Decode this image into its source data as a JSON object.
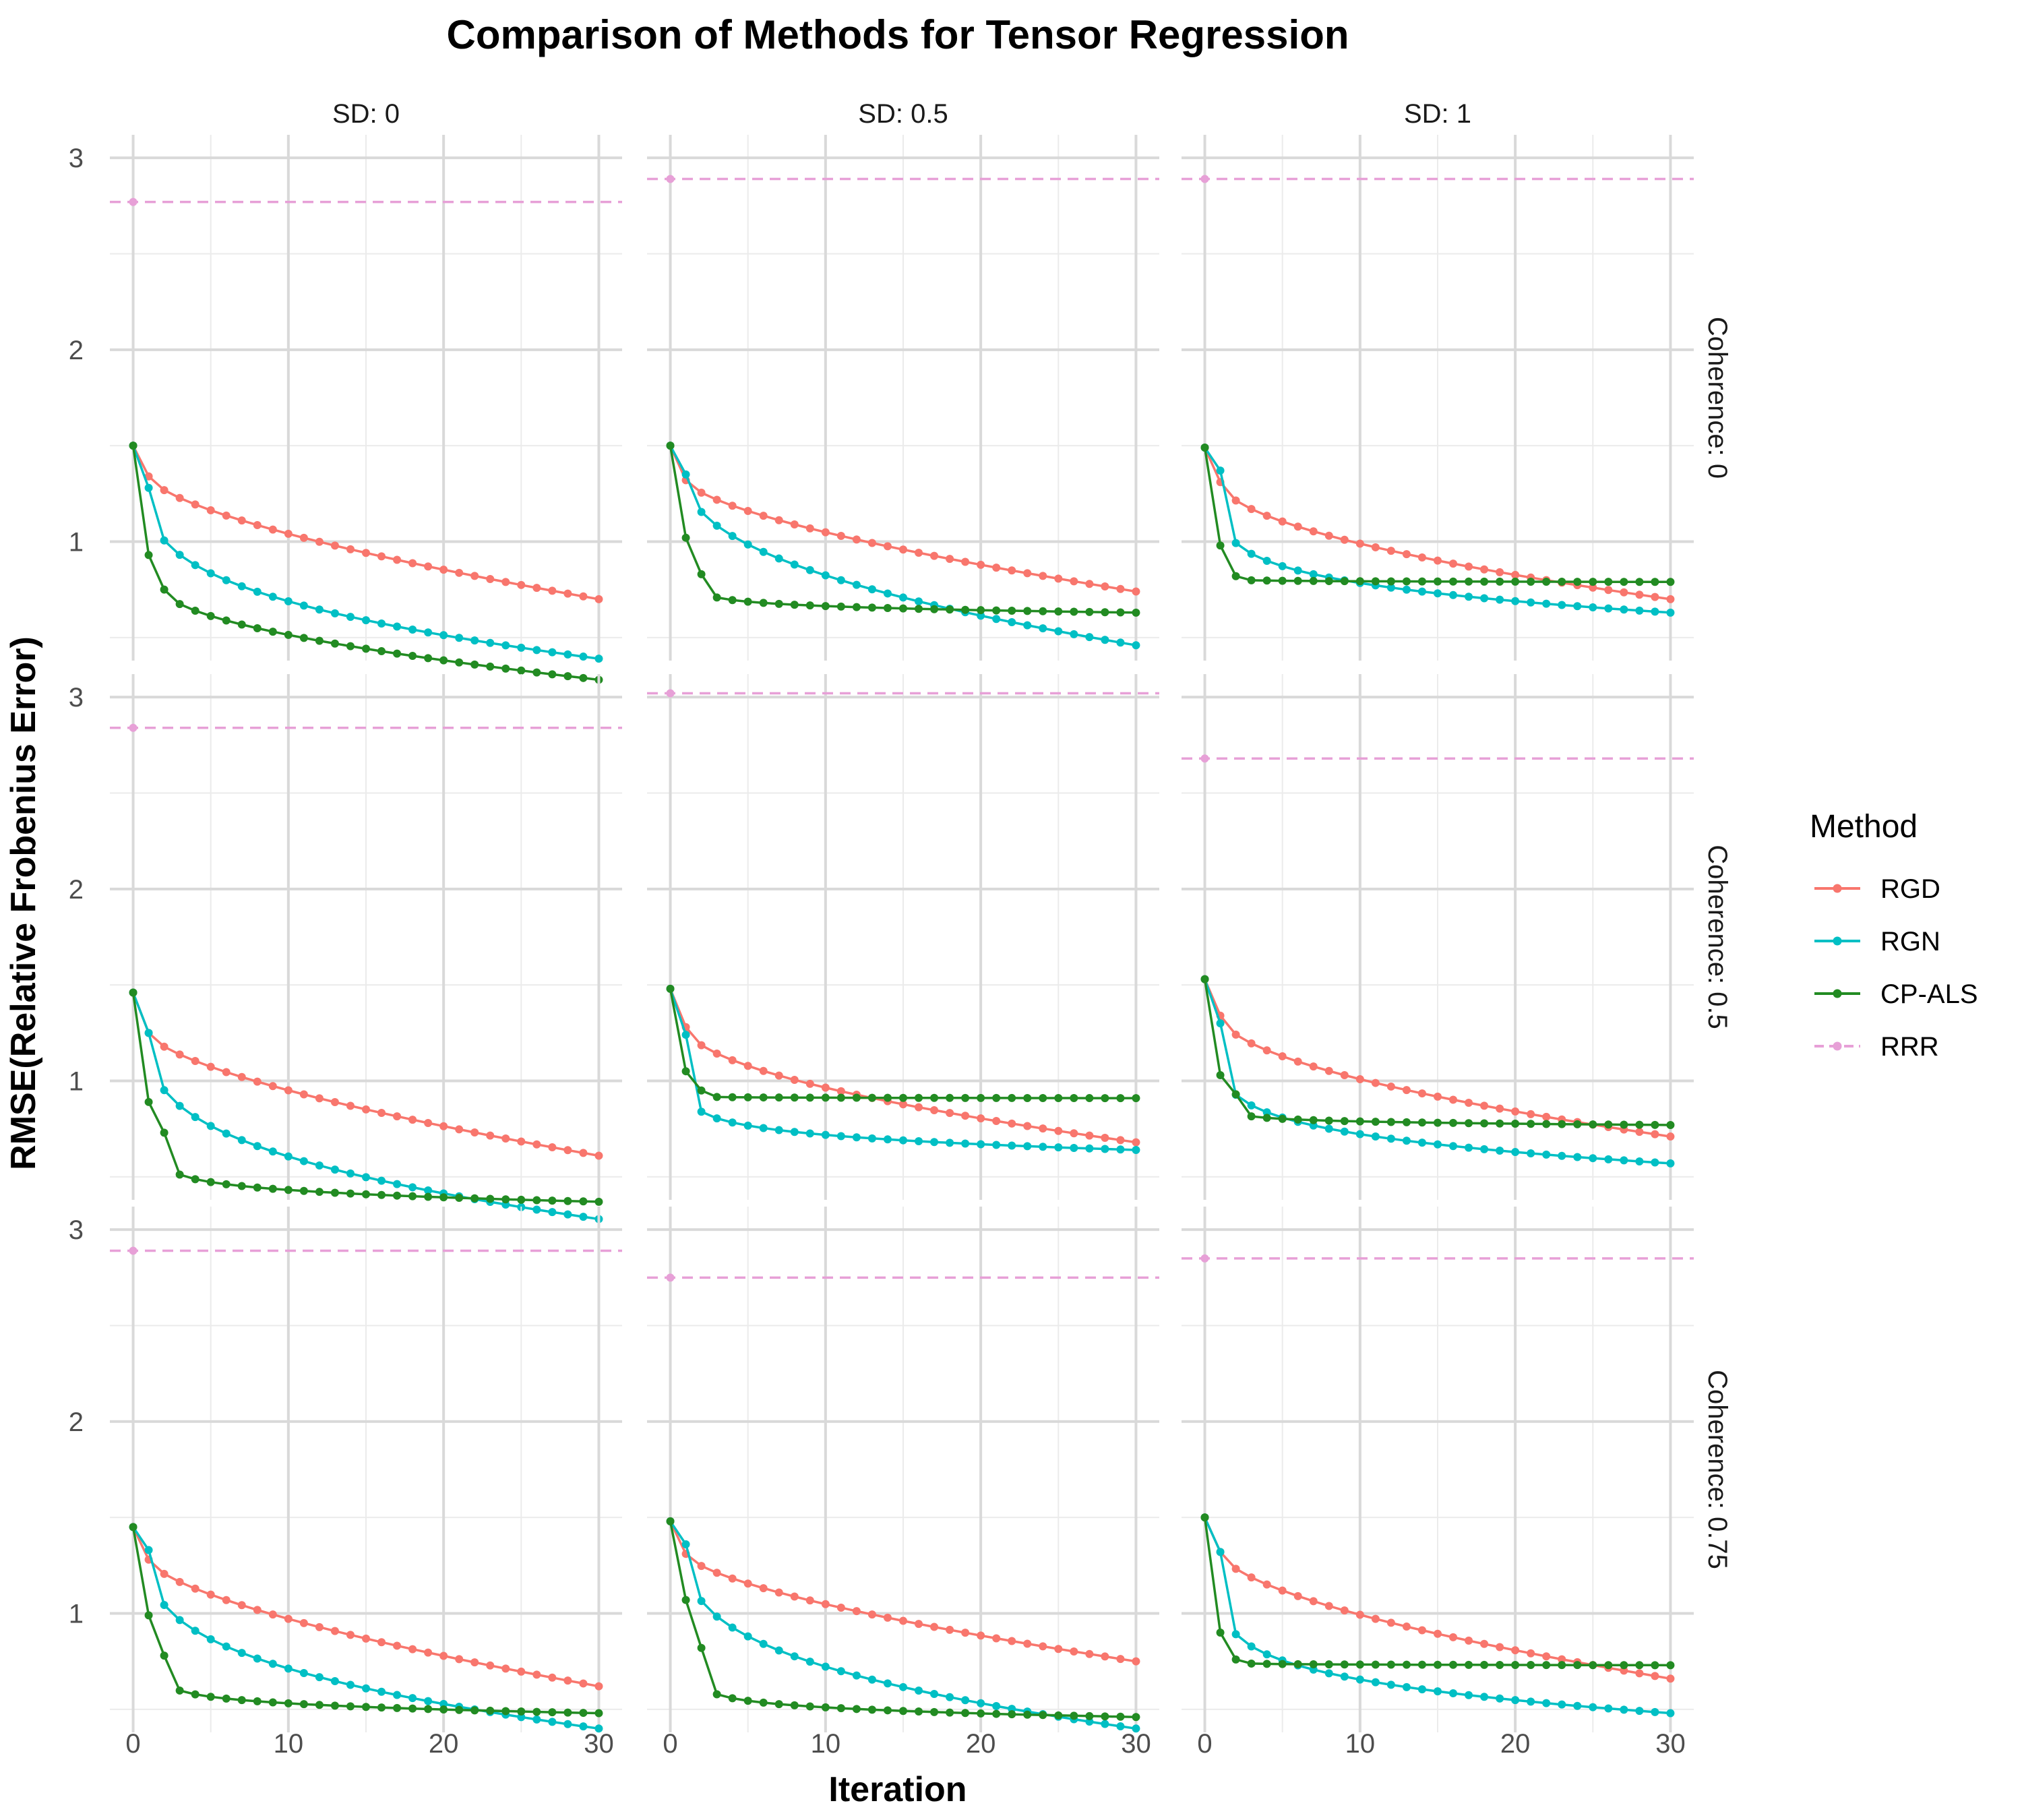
{
  "chart_data": {
    "type": "line",
    "title": "Comparison of Methods for Tensor Regression",
    "xlabel": "Iteration",
    "ylabel": "RMSE(Relative Frobenius Error)",
    "xlim": [
      -1.5,
      31.5
    ],
    "ylim": [
      0.38,
      3.12
    ],
    "x_ticks": [
      0,
      10,
      20,
      30
    ],
    "y_ticks": [
      1,
      2,
      3
    ],
    "grid": true,
    "col_facets": [
      "SD: 0",
      "SD: 0.5",
      "SD: 1"
    ],
    "row_facets": [
      "Coherence: 0",
      "Coherence: 0.5",
      "Coherence: 0.75"
    ],
    "legend": {
      "title": "Method",
      "position": "right",
      "items": [
        {
          "name": "RGD",
          "color": "#F8766D"
        },
        {
          "name": "RGN",
          "color": "#00BFC4"
        },
        {
          "name": "CP-ALS",
          "color": "#228B22"
        },
        {
          "name": "RRR",
          "color": "#E7A0D7"
        }
      ]
    },
    "panels": [
      {
        "row": "Coherence: 0",
        "col": "SD: 0",
        "RGD": {
          "start": 1.5,
          "it1": 1.34,
          "end": 0.7,
          "shape": 0.65
        },
        "RGN": {
          "start": 1.5,
          "it1": 1.28,
          "end": 0.39,
          "shape": 0.35
        },
        "CPALS": {
          "start": 1.5,
          "it1": 0.93,
          "it2": 0.75,
          "end": 0.28,
          "shape": 0.55
        },
        "RRR": 2.77
      },
      {
        "row": "Coherence: 0",
        "col": "SD: 0.5",
        "RGD": {
          "start": 1.5,
          "it1": 1.32,
          "end": 0.74,
          "shape": 0.65
        },
        "RGN": {
          "start": 1.5,
          "it1": 1.35,
          "end": 0.46,
          "shape": 0.45
        },
        "CPALS": {
          "start": 1.5,
          "it1": 1.02,
          "it2": 0.83,
          "end": 0.63,
          "shape": 0.15
        },
        "RRR": 2.89
      },
      {
        "row": "Coherence: 0",
        "col": "SD: 1",
        "RGD": {
          "start": 1.49,
          "it1": 1.31,
          "end": 0.7,
          "shape": 0.55
        },
        "RGN": {
          "start": 1.49,
          "it1": 1.37,
          "end": 0.63,
          "shape": 0.2
        },
        "CPALS": {
          "start": 1.49,
          "it1": 0.98,
          "it2": 0.82,
          "end": 0.79,
          "shape": 0.1
        },
        "RRR": 2.89
      },
      {
        "row": "Coherence: 0.5",
        "col": "SD: 0",
        "RGD": {
          "start": 1.46,
          "it1": 1.25,
          "end": 0.61,
          "shape": 0.65
        },
        "RGN": {
          "start": 1.46,
          "it1": 1.25,
          "end": 0.28,
          "shape": 0.35
        },
        "CPALS": {
          "start": 1.46,
          "it1": 0.89,
          "it2": 0.73,
          "end": 0.37,
          "shape": 0.15
        },
        "RRR": 2.84
      },
      {
        "row": "Coherence: 0.5",
        "col": "SD: 0.5",
        "RGD": {
          "start": 1.48,
          "it1": 1.28,
          "end": 0.68,
          "shape": 0.55
        },
        "RGN": {
          "start": 1.48,
          "it1": 1.24,
          "end": 0.64,
          "shape": 0.12
        },
        "CPALS": {
          "start": 1.48,
          "it1": 1.05,
          "it2": 0.95,
          "end": 0.91,
          "shape": 0.05
        },
        "RRR": 3.02
      },
      {
        "row": "Coherence: 0.5",
        "col": "SD: 1",
        "RGD": {
          "start": 1.53,
          "it1": 1.34,
          "end": 0.71,
          "shape": 0.55
        },
        "RGN": {
          "start": 1.53,
          "it1": 1.3,
          "end": 0.57,
          "shape": 0.2
        },
        "CPALS": {
          "start": 1.53,
          "it1": 1.03,
          "it2": 0.93,
          "end": 0.77,
          "shape": 0.1
        },
        "RRR": 2.68
      },
      {
        "row": "Coherence: 0.75",
        "col": "SD: 0",
        "RGD": {
          "start": 1.45,
          "it1": 1.28,
          "end": 0.62,
          "shape": 0.65
        },
        "RGN": {
          "start": 1.45,
          "it1": 1.33,
          "end": 0.4,
          "shape": 0.35
        },
        "CPALS": {
          "start": 1.45,
          "it1": 0.99,
          "it2": 0.78,
          "end": 0.48,
          "shape": 0.15
        },
        "RRR": 2.89
      },
      {
        "row": "Coherence: 0.75",
        "col": "SD: 0.5",
        "RGD": {
          "start": 1.48,
          "it1": 1.31,
          "end": 0.75,
          "shape": 0.65
        },
        "RGN": {
          "start": 1.48,
          "it1": 1.36,
          "end": 0.4,
          "shape": 0.35
        },
        "CPALS": {
          "start": 1.48,
          "it1": 1.07,
          "it2": 0.82,
          "end": 0.46,
          "shape": 0.12
        },
        "RRR": 2.75
      },
      {
        "row": "Coherence: 0.75",
        "col": "SD: 1",
        "RGD": {
          "start": 1.5,
          "it1": 1.32,
          "end": 0.66,
          "shape": 0.6
        },
        "RGN": {
          "start": 1.5,
          "it1": 1.32,
          "end": 0.48,
          "shape": 0.2
        },
        "CPALS": {
          "start": 1.5,
          "it1": 0.9,
          "it2": 0.76,
          "end": 0.73,
          "shape": 0.1
        },
        "RRR": 2.85
      }
    ]
  }
}
